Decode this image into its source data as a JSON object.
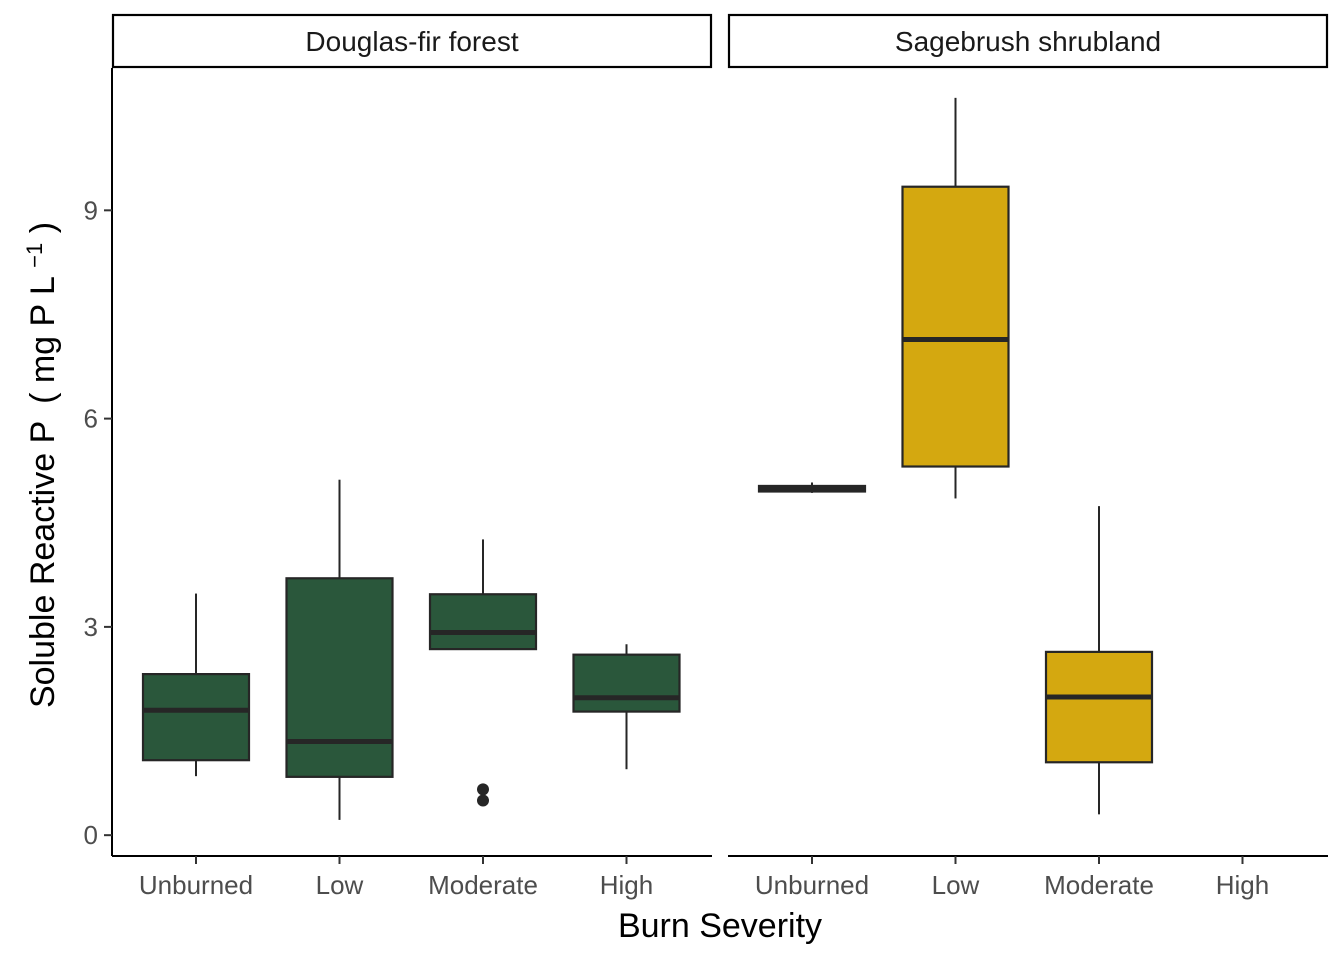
{
  "chart_data": {
    "type": "box",
    "xlabel": "Burn Severity",
    "ylabel": "Soluble Reactive P (mg P L⁻¹)",
    "ylabel_parts": {
      "main": "Soluble Reactive P",
      "unit_open": "(",
      "unit": "mg P L",
      "unit_sup": "−1",
      "unit_close": ")"
    },
    "categories": [
      "Unburned",
      "Low",
      "Moderate",
      "High"
    ],
    "ylim": [
      -0.3,
      11.05
    ],
    "yticks": [
      0,
      3,
      6,
      9
    ],
    "ytick_labels": [
      "0",
      "3",
      "6",
      "9"
    ],
    "legend": "none",
    "grid": false,
    "panels": [
      {
        "name": "Douglas-fir forest",
        "color": "#2a573b",
        "boxes": [
          {
            "category": "Unburned",
            "min": 0.85,
            "q1": 1.08,
            "median": 1.8,
            "q3": 2.32,
            "max": 3.48,
            "outliers": []
          },
          {
            "category": "Low",
            "min": 0.22,
            "q1": 0.84,
            "median": 1.35,
            "q3": 3.7,
            "max": 5.12,
            "outliers": []
          },
          {
            "category": "Moderate",
            "min": 2.68,
            "q1": 2.68,
            "median": 2.92,
            "q3": 3.47,
            "max": 4.26,
            "outliers": [
              0.66,
              0.5
            ]
          },
          {
            "category": "High",
            "min": 0.95,
            "q1": 1.78,
            "median": 1.98,
            "q3": 2.6,
            "max": 2.75,
            "outliers": []
          }
        ]
      },
      {
        "name": "Sagebrush shrubland",
        "color": "#d4a810",
        "boxes": [
          {
            "category": "Unburned",
            "min": 4.93,
            "q1": 4.95,
            "median": 4.99,
            "q3": 5.03,
            "max": 5.08,
            "outliers": []
          },
          {
            "category": "Low",
            "min": 4.85,
            "q1": 5.31,
            "median": 7.14,
            "q3": 9.34,
            "max": 10.62,
            "outliers": []
          },
          {
            "category": "Moderate",
            "min": 0.3,
            "q1": 1.05,
            "median": 1.99,
            "q3": 2.64,
            "max": 4.74,
            "outliers": []
          }
        ]
      }
    ]
  }
}
